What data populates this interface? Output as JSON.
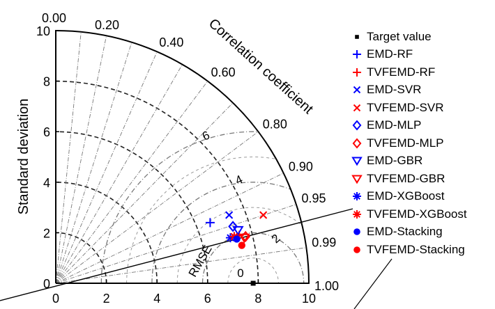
{
  "chart_data": {
    "type": "scatter",
    "diagram": "taylor",
    "ylabel": "Standard deviation",
    "angle_label": "Correlation coefficient",
    "rmse_label": "RMSE",
    "std_range": [
      0,
      10
    ],
    "std_ticks": [
      "0",
      "2",
      "4",
      "6",
      "8",
      "10"
    ],
    "std_tick_values": [
      0,
      2,
      4,
      6,
      8,
      10
    ],
    "correlation_ticks": [
      "0.00",
      "0.20",
      "0.40",
      "0.60",
      "0.80",
      "0.90",
      "0.95",
      "0.99",
      "1.00"
    ],
    "correlation_values": [
      0.0,
      0.2,
      0.4,
      0.6,
      0.8,
      0.9,
      0.95,
      0.99,
      1.0
    ],
    "rmse_contour_labels": [
      "0",
      "2",
      "4",
      "6"
    ],
    "rmse_contour_values": [
      0,
      2,
      4,
      6
    ],
    "reference_std": 7.8,
    "series": [
      {
        "name": "Target value",
        "marker": "square",
        "color": "#000000",
        "x": 7.8,
        "y": 0.0
      },
      {
        "name": "EMD-RF",
        "marker": "plus",
        "color": "#0000ff",
        "x": 6.1,
        "y": 2.4
      },
      {
        "name": "TVFEMD-RF",
        "marker": "plus",
        "color": "#ff0000",
        "x": 7.25,
        "y": 1.9
      },
      {
        "name": "EMD-SVR",
        "marker": "x",
        "color": "#0000ff",
        "x": 6.85,
        "y": 2.7
      },
      {
        "name": "TVFEMD-SVR",
        "marker": "x",
        "color": "#ff0000",
        "x": 8.2,
        "y": 2.7
      },
      {
        "name": "EMD-MLP",
        "marker": "diamond",
        "color": "#0000ff",
        "x": 7.0,
        "y": 2.25
      },
      {
        "name": "TVFEMD-MLP",
        "marker": "diamond",
        "color": "#ff0000",
        "x": 7.5,
        "y": 1.85
      },
      {
        "name": "EMD-GBR",
        "marker": "triangle-down",
        "color": "#0000ff",
        "x": 7.2,
        "y": 2.1
      },
      {
        "name": "TVFEMD-GBR",
        "marker": "triangle-down",
        "color": "#ff0000",
        "x": 7.45,
        "y": 1.8
      },
      {
        "name": "EMD-XGBoost",
        "marker": "asterisk",
        "color": "#0000ff",
        "x": 6.9,
        "y": 1.8
      },
      {
        "name": "TVFEMD-XGBoost",
        "marker": "asterisk",
        "color": "#ff0000",
        "x": 7.05,
        "y": 1.85
      },
      {
        "name": "EMD-Stacking",
        "marker": "circle",
        "color": "#0000ff",
        "x": 7.15,
        "y": 1.75
      },
      {
        "name": "TVFEMD-Stacking",
        "marker": "circle",
        "color": "#ff0000",
        "x": 7.35,
        "y": 1.5
      }
    ]
  }
}
